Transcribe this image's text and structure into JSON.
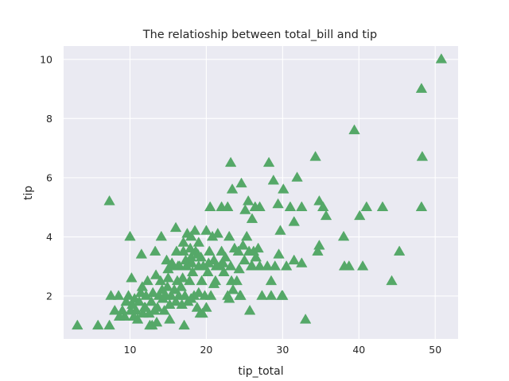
{
  "chart_data": {
    "type": "scatter",
    "title": "The relatioship between total_bill and tip",
    "xlabel": "tip_total",
    "ylabel": "tip",
    "xlim": [
      1.3,
      53.0
    ],
    "ylim": [
      0.55,
      10.45
    ],
    "xticks": [
      10,
      20,
      30,
      40,
      50
    ],
    "yticks": [
      2,
      4,
      6,
      8,
      10
    ],
    "grid": true,
    "marker": "triangle",
    "color": "#55a868",
    "background": "#eaeaf2",
    "points": [
      [
        3.1,
        1.0
      ],
      [
        5.8,
        1.0
      ],
      [
        7.3,
        1.0
      ],
      [
        17.1,
        1.0
      ],
      [
        12.6,
        1.0
      ],
      [
        12.9,
        1.0
      ],
      [
        7.3,
        5.2
      ],
      [
        10.0,
        4.0
      ],
      [
        11.5,
        3.4
      ],
      [
        13.3,
        3.5
      ],
      [
        14.1,
        4.0
      ],
      [
        15.0,
        2.9
      ],
      [
        8.6,
        1.3
      ],
      [
        9.0,
        1.5
      ],
      [
        9.5,
        1.8
      ],
      [
        10.1,
        1.5
      ],
      [
        10.3,
        1.7
      ],
      [
        10.5,
        1.3
      ],
      [
        10.8,
        1.5
      ],
      [
        11.0,
        1.2
      ],
      [
        7.5,
        2.0
      ],
      [
        8.0,
        1.5
      ],
      [
        8.5,
        2.0
      ],
      [
        9.3,
        1.3
      ],
      [
        9.8,
        2.0
      ],
      [
        10.2,
        2.6
      ],
      [
        10.6,
        1.9
      ],
      [
        11.2,
        1.8
      ],
      [
        11.4,
        2.1
      ],
      [
        11.6,
        2.3
      ],
      [
        11.9,
        1.6
      ],
      [
        12.1,
        2.0
      ],
      [
        12.3,
        2.5
      ],
      [
        12.5,
        1.4
      ],
      [
        12.8,
        1.8
      ],
      [
        13.0,
        2.1
      ],
      [
        13.2,
        1.5
      ],
      [
        13.4,
        2.7
      ],
      [
        13.6,
        1.6
      ],
      [
        13.8,
        2.0
      ],
      [
        14.0,
        2.5
      ],
      [
        14.2,
        2.2
      ],
      [
        14.3,
        1.9
      ],
      [
        14.5,
        1.5
      ],
      [
        14.7,
        2.0
      ],
      [
        14.9,
        2.3
      ],
      [
        15.0,
        2.6
      ],
      [
        15.2,
        1.7
      ],
      [
        15.4,
        2.0
      ],
      [
        15.6,
        3.0
      ],
      [
        15.8,
        2.2
      ],
      [
        16.0,
        1.8
      ],
      [
        16.2,
        2.5
      ],
      [
        16.4,
        2.0
      ],
      [
        16.5,
        3.0
      ],
      [
        16.7,
        2.3
      ],
      [
        16.9,
        2.6
      ],
      [
        17.0,
        3.5
      ],
      [
        17.2,
        2.0
      ],
      [
        17.4,
        3.0
      ],
      [
        17.6,
        1.8
      ],
      [
        17.8,
        2.5
      ],
      [
        18.0,
        3.3
      ],
      [
        18.2,
        2.8
      ],
      [
        18.4,
        2.0
      ],
      [
        18.6,
        3.5
      ],
      [
        18.8,
        1.6
      ],
      [
        19.0,
        3.0
      ],
      [
        19.2,
        1.4
      ],
      [
        19.4,
        2.5
      ],
      [
        19.6,
        3.0
      ],
      [
        19.8,
        2.0
      ],
      [
        20.0,
        4.2
      ],
      [
        20.2,
        2.8
      ],
      [
        20.4,
        3.5
      ],
      [
        20.6,
        2.0
      ],
      [
        20.8,
        4.0
      ],
      [
        21.0,
        3.2
      ],
      [
        21.2,
        2.5
      ],
      [
        21.5,
        4.1
      ],
      [
        21.8,
        3.0
      ],
      [
        22.0,
        3.5
      ],
      [
        22.3,
        2.8
      ],
      [
        22.5,
        3.3
      ],
      [
        22.8,
        2.0
      ],
      [
        23.0,
        4.0
      ],
      [
        23.2,
        3.0
      ],
      [
        23.5,
        2.2
      ],
      [
        23.7,
        3.6
      ],
      [
        24.0,
        2.5
      ],
      [
        24.2,
        3.5
      ],
      [
        24.5,
        2.0
      ],
      [
        24.8,
        3.7
      ],
      [
        25.0,
        3.2
      ],
      [
        25.3,
        4.0
      ],
      [
        25.6,
        3.5
      ],
      [
        25.9,
        3.0
      ],
      [
        26.2,
        3.5
      ],
      [
        26.5,
        3.3
      ],
      [
        27.0,
        3.0
      ],
      [
        28.0,
        3.0
      ],
      [
        28.5,
        2.5
      ],
      [
        29.0,
        3.0
      ],
      [
        29.5,
        3.4
      ],
      [
        30.0,
        2.0
      ],
      [
        30.5,
        3.0
      ],
      [
        31.5,
        3.2
      ],
      [
        32.5,
        3.1
      ],
      [
        16.0,
        4.3
      ],
      [
        17.0,
        3.8
      ],
      [
        17.5,
        4.1
      ],
      [
        18.0,
        4.0
      ],
      [
        18.5,
        4.2
      ],
      [
        19.0,
        3.8
      ],
      [
        20.5,
        5.0
      ],
      [
        22.0,
        5.0
      ],
      [
        22.8,
        5.0
      ],
      [
        23.2,
        6.5
      ],
      [
        23.4,
        5.6
      ],
      [
        24.6,
        5.8
      ],
      [
        25.1,
        4.9
      ],
      [
        25.5,
        5.2
      ],
      [
        26.0,
        4.6
      ],
      [
        26.4,
        5.0
      ],
      [
        27.0,
        5.0
      ],
      [
        28.2,
        6.5
      ],
      [
        28.8,
        5.9
      ],
      [
        29.4,
        5.1
      ],
      [
        30.1,
        5.6
      ],
      [
        31.0,
        5.0
      ],
      [
        31.5,
        4.5
      ],
      [
        31.9,
        6.0
      ],
      [
        32.5,
        5.0
      ],
      [
        34.3,
        6.7
      ],
      [
        34.8,
        5.2
      ],
      [
        35.3,
        5.0
      ],
      [
        35.7,
        4.7
      ],
      [
        29.7,
        4.2
      ],
      [
        38.0,
        4.0
      ],
      [
        39.4,
        7.6
      ],
      [
        40.1,
        4.7
      ],
      [
        41.0,
        5.0
      ],
      [
        43.1,
        5.0
      ],
      [
        44.3,
        2.5
      ],
      [
        45.3,
        3.5
      ],
      [
        48.2,
        9.0
      ],
      [
        48.3,
        6.7
      ],
      [
        48.2,
        5.0
      ],
      [
        50.8,
        10.0
      ],
      [
        38.1,
        3.0
      ],
      [
        38.7,
        3.0
      ],
      [
        40.5,
        3.0
      ],
      [
        34.6,
        3.5
      ],
      [
        34.8,
        3.7
      ],
      [
        33.0,
        1.2
      ],
      [
        27.3,
        2.0
      ],
      [
        28.5,
        2.0
      ],
      [
        29.9,
        2.0
      ],
      [
        25.7,
        1.5
      ],
      [
        23.0,
        1.9
      ],
      [
        24.4,
        2.0
      ],
      [
        19.5,
        1.4
      ],
      [
        20.0,
        1.6
      ],
      [
        18.0,
        1.9
      ],
      [
        19.0,
        2.1
      ],
      [
        21.0,
        2.4
      ],
      [
        16.8,
        1.7
      ],
      [
        15.2,
        1.2
      ],
      [
        13.5,
        1.1
      ],
      [
        11.7,
        1.4
      ],
      [
        12.0,
        1.6
      ],
      [
        14.8,
        3.2
      ],
      [
        15.5,
        3.1
      ],
      [
        16.3,
        3.0
      ],
      [
        17.3,
        3.2
      ],
      [
        18.1,
        3.1
      ],
      [
        19.3,
        3.3
      ],
      [
        20.3,
        3.1
      ],
      [
        21.3,
        3.0
      ],
      [
        22.2,
        3.1
      ],
      [
        23.3,
        2.5
      ],
      [
        24.3,
        2.9
      ],
      [
        26.0,
        3.0
      ],
      [
        26.8,
        3.6
      ],
      [
        16.1,
        3.5
      ],
      [
        17.9,
        3.6
      ],
      [
        18.9,
        3.4
      ]
    ]
  }
}
